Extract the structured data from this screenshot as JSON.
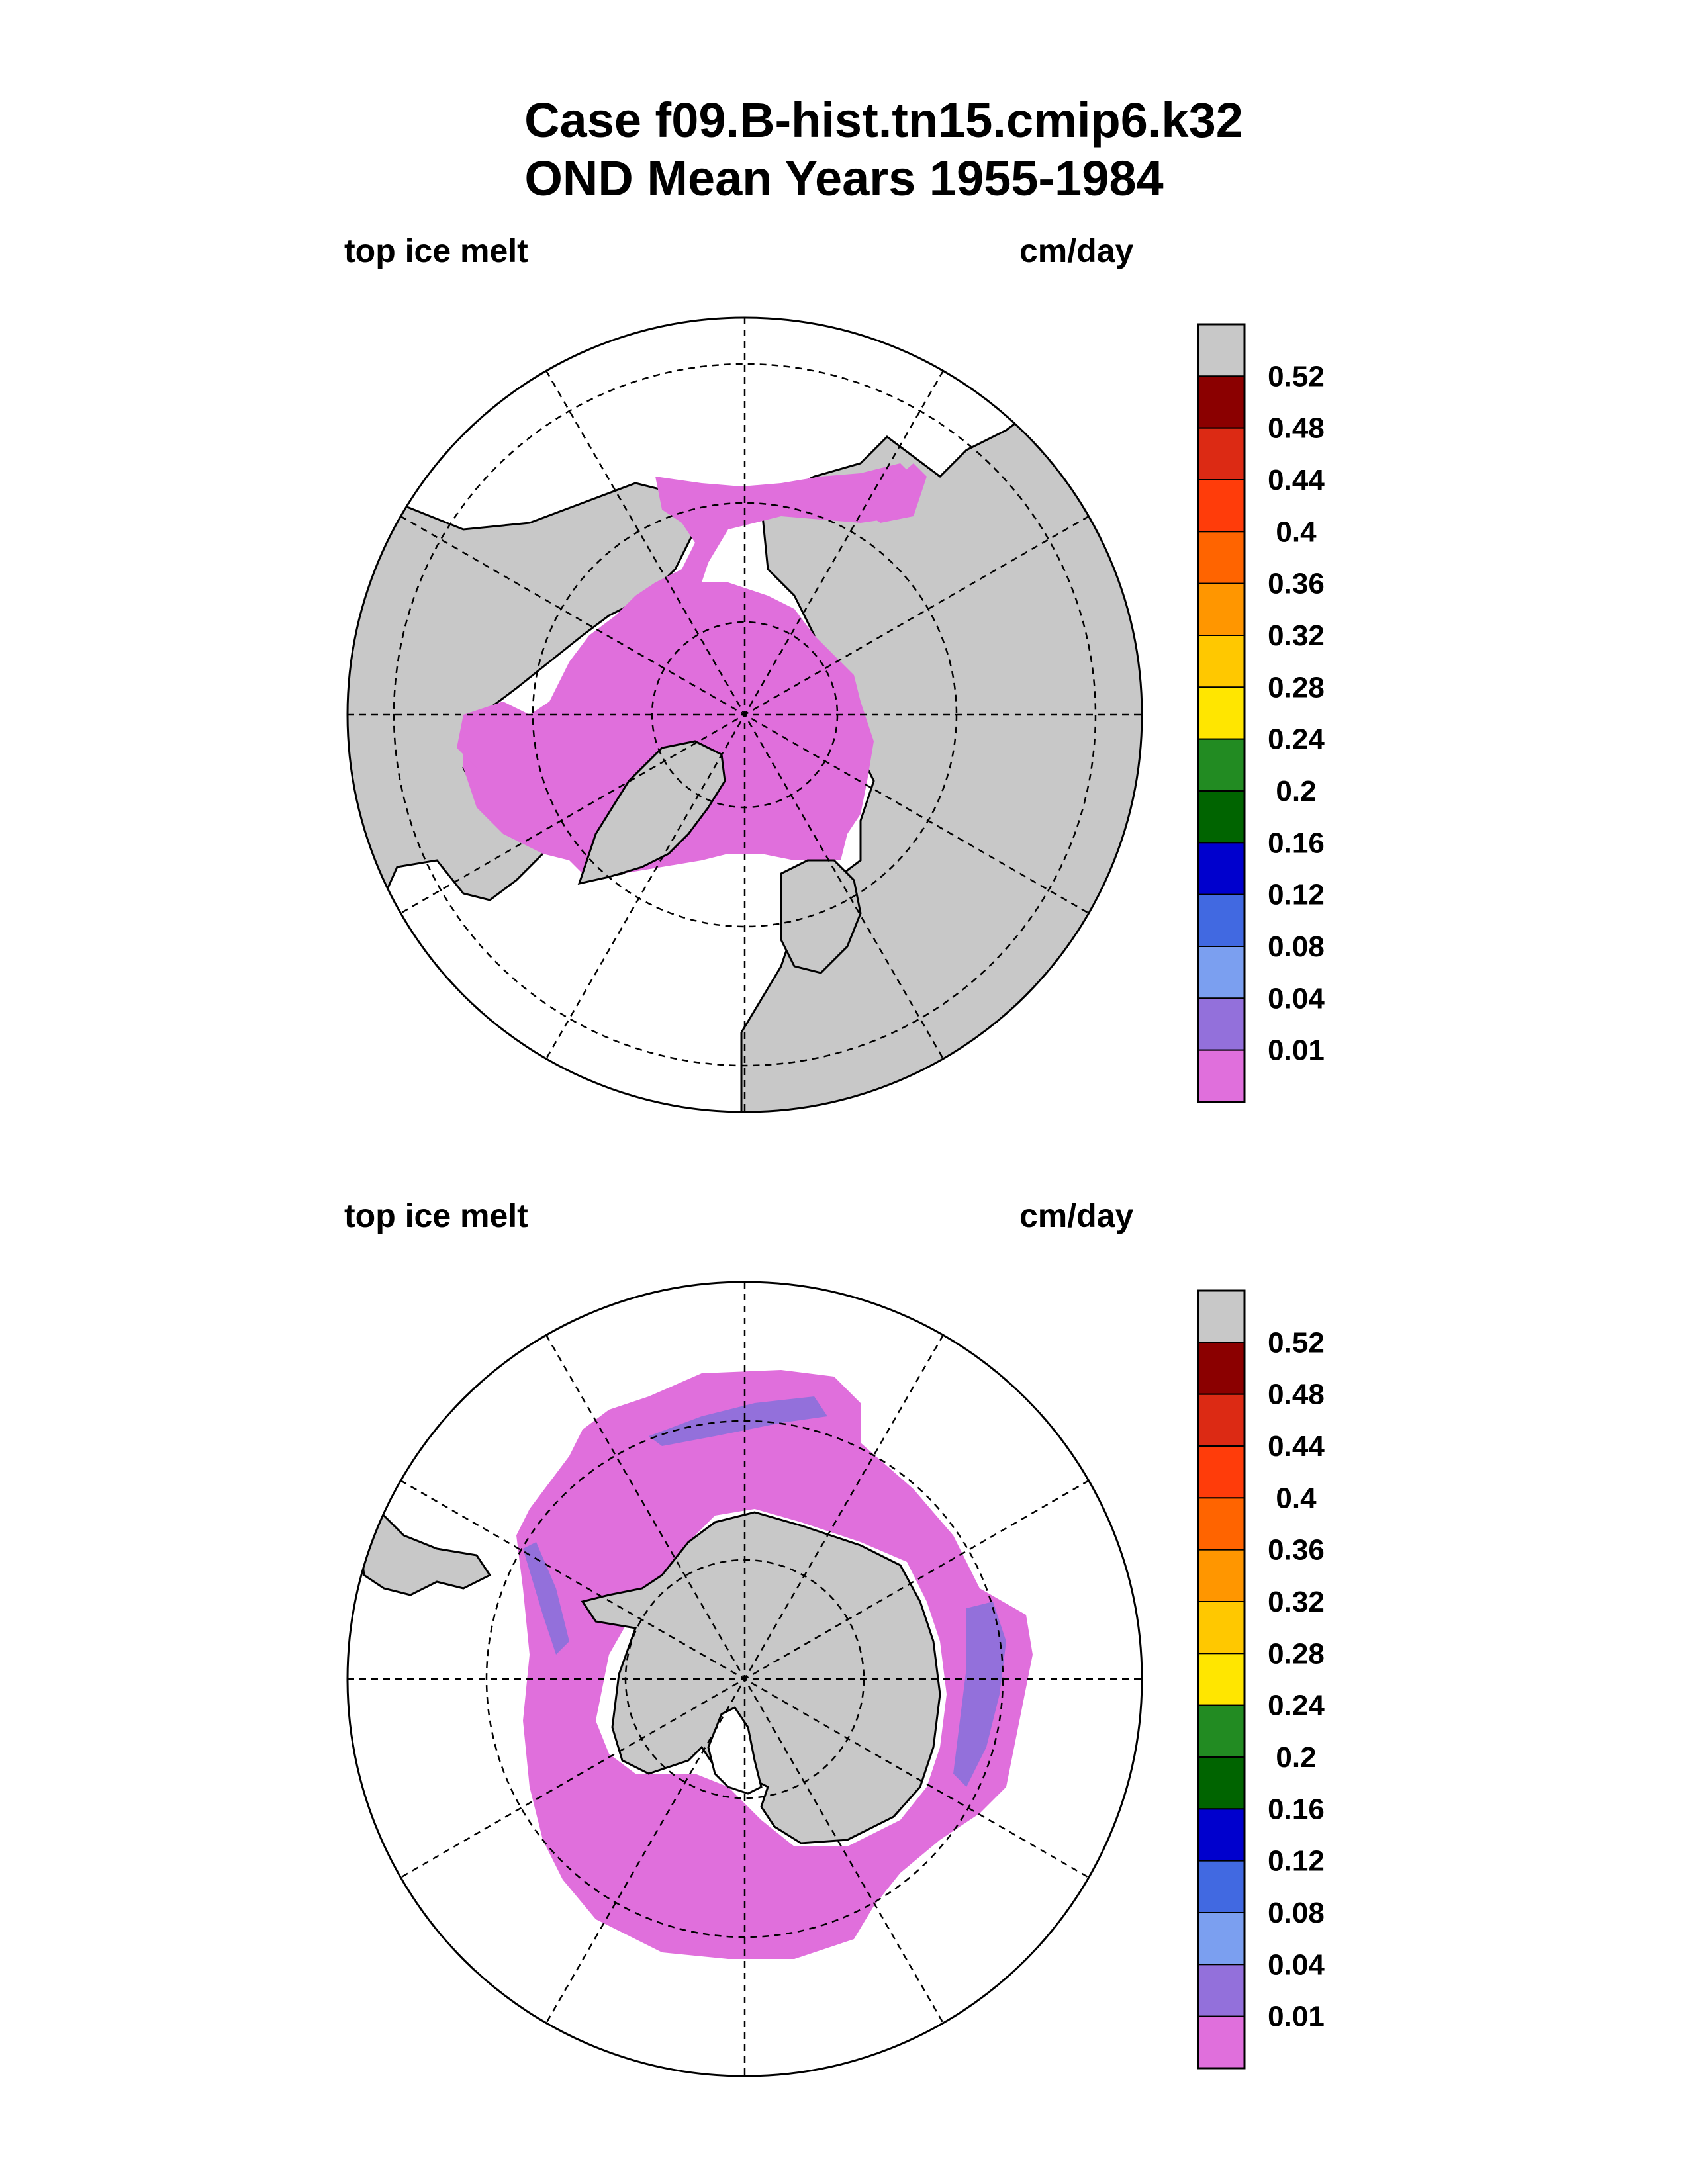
{
  "title": {
    "line1": "Case f09.B-hist.tn15.cmip6.k32",
    "line2": "OND Mean   Years 1955-1984"
  },
  "panels": [
    {
      "name": "north",
      "variable": "top ice melt",
      "units": "cm/day"
    },
    {
      "name": "south",
      "variable": "top ice melt",
      "units": "cm/day"
    }
  ],
  "colorbar": {
    "labels": [
      "0.52",
      "0.48",
      "0.44",
      "0.4",
      "0.36",
      "0.32",
      "0.28",
      "0.24",
      "0.2",
      "0.16",
      "0.12",
      "0.08",
      "0.04",
      "0.01"
    ],
    "colors": [
      "#c8c8c8",
      "#8b0000",
      "#dc2a14",
      "#ff3c0a",
      "#ff6400",
      "#ff9600",
      "#ffc800",
      "#ffe600",
      "#228b22",
      "#006400",
      "#0000cd",
      "#4169e1",
      "#7b9ff0",
      "#9370db",
      "#e06fdc"
    ]
  },
  "colors": {
    "land": "#c8c8c8",
    "ice_melt_low": "#e06fdc",
    "ice_melt_001": "#9370db",
    "ocean": "#ffffff"
  }
}
